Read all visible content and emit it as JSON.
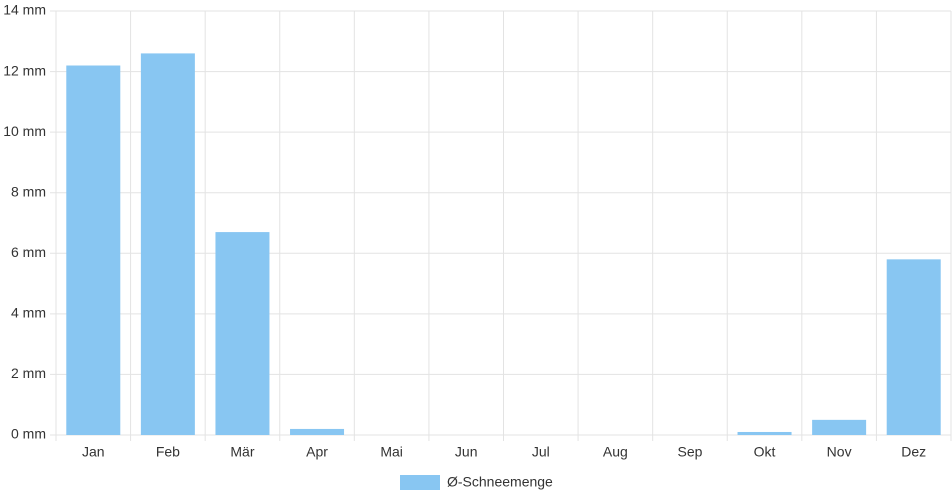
{
  "chart_data": {
    "type": "bar",
    "categories": [
      "Jan",
      "Feb",
      "Mär",
      "Apr",
      "Mai",
      "Jun",
      "Jul",
      "Aug",
      "Sep",
      "Okt",
      "Nov",
      "Dez"
    ],
    "series": [
      {
        "name": "Ø-Schneemenge",
        "color": "#88c6f2",
        "values": [
          12.2,
          12.6,
          6.7,
          0.2,
          0,
          0,
          0,
          0,
          0,
          0.1,
          0.5,
          5.8
        ]
      }
    ],
    "ylim": [
      0,
      14
    ],
    "yticks": [
      {
        "value": 0,
        "label": "0 mm"
      },
      {
        "value": 2,
        "label": "2 mm"
      },
      {
        "value": 4,
        "label": "4 mm"
      },
      {
        "value": 6,
        "label": "6 mm"
      },
      {
        "value": 8,
        "label": "8 mm"
      },
      {
        "value": 10,
        "label": "10 mm"
      },
      {
        "value": 12,
        "label": "12 mm"
      },
      {
        "value": 14,
        "label": "14 mm"
      }
    ],
    "grid": true,
    "legend": "bottom"
  }
}
